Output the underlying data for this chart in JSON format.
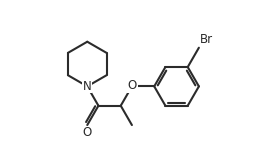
{
  "bg_color": "#ffffff",
  "line_color": "#2b2b2b",
  "bond_width": 1.5,
  "font_size": 8.5,
  "figsize": [
    2.76,
    1.55
  ],
  "dpi": 100,
  "xlim": [
    0.0,
    10.0
  ],
  "ylim": [
    0.0,
    6.0
  ]
}
